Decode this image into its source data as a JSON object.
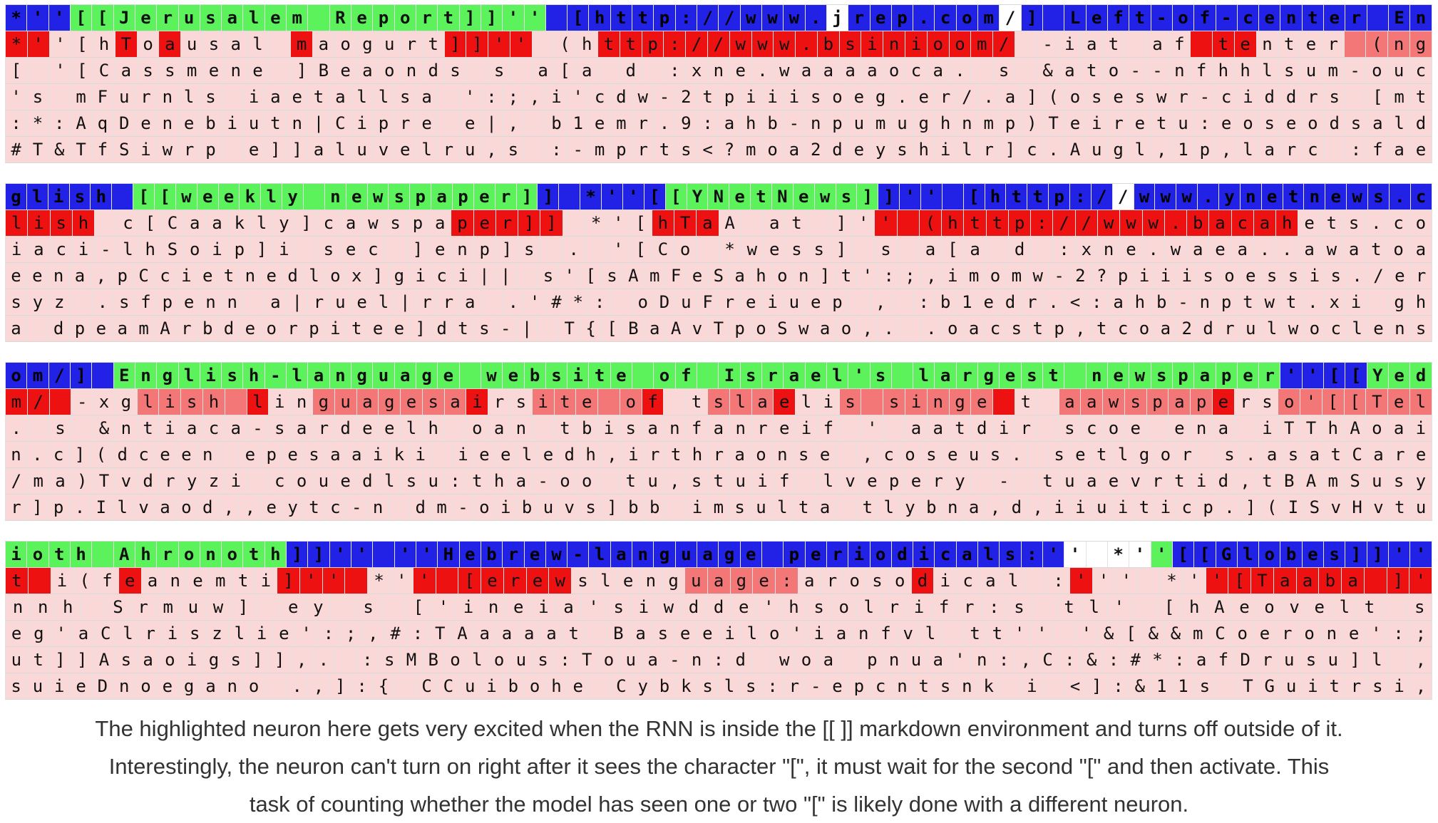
{
  "colors": {
    "top_in": "#5cf25c",
    "top_out": "#2222e6",
    "top_mid": "#b8b8ff",
    "top_none": "#ffffff",
    "pred_strong": "#ee1111",
    "pred_mid": "#f37777",
    "pred_light": "#fad8d8",
    "pred_none": "#ffffff"
  },
  "blocks": [
    {
      "top": "*''[[Jerusalem Report]]'' [http://www.jrep.com/] Left-of-center En",
      "top_level": "OOOGGGGGGGGGGGGGGGGGGGGGGOOOOOOOOOOOOOWOOOOOOOWOOOOOOOOOOOOOOOOOOOO",
      "preds": [
        "*''[hToausal maogurt]]'' (http://www.bsinioom/ -iat af tenter (ng",
        "[ '[Cassmene ]Beaonds s a[a d :xne.waaaaoca. s &ato--nfhhlsum-ouc",
        "'s mFurnls iaetallsa ':;,i'cdw-2tpiiisoeg.er/.a](oseswr-ciddrs [mt",
        ":*:AqDenebiutn|Cipre e|, b1emr.9:ahb-npumughnmp)Teiretu:eoseodsald",
        "#T&TfSiwrp e]]aluvelru,s :-mprts<?moa2deyshilr]c.Augl,1p,larc :fae"
      ],
      "levels": [
        "SSLLLSLSLLLLLSLLLLLLSSSSLLLSSSSSSSSSSSSSSSSSSSLLLLLLLLSSSLLLLMMMMMMMM",
        "LLLLLLLLLLLLLLLLLLLLLLLLLLLLLLLLLLLLLLLLLLLLLLLLLLLLLLLLLLLLLLLLLLLL",
        "LLLLLLLLLLLLLLLLLLLLLLLLLLLLLLLLLLLLLLLLLLLLLLLLLLLLLLLLLLLLLLLLLLLL",
        "LLLLLLLLLLLLLLLLLLLLLLLLLLLLLLLLLLLLLLLLLLLLLLLLLLLLLLLLLLLLLLLLLLLL",
        "LLLLLLLLLLLLLLLLLLLLLLLLLLLLLLLLLLLLLLLLLLLLLLLLLLLLLLLLLLLLLLLLLLLL"
      ]
    },
    {
      "top": "glish [[weekly newspaper]] *''[[YNetNews]]'' [http://www.ynetnews.c",
      "top_level": "OOOOOOGGGGGGGGGGGGGGGGGGGOOOOOOGGGGGGGGGGOOOOOOOOOOOWOOOOOOOOOOOOOOO",
      "preds": [
        "lish c[Caakly]cawspaper]] *'[hTaA at ]'' (http://www.bacahets.co",
        "iaci-lhSoip]i sec ]enp]s . '[Co *wess] s a[a d :xne.waea..awatoa",
        "eena,pCcietnedlox]gici|| s'[sAmFeSahon]t':;,imomw-2?piiisoessis./er",
        "syz .sfpenn a|ruel|rra .'#*: oDuFreiuep , :b1edr.<:ahb-nptwt.xi gh",
        "a dpeamArbdeorpitee]dts-| T{[BaAvTpoSwao,. .oacstp,tcoa2drulwoclens"
      ],
      "levels": [
        "SSSSLLLLLLLLLLLLLLLLSSSSSLLLLSSSLLLLLLLSSSSSSSSSSSSSSSSSSSLLLLLLLLSSSS",
        "LLLLLLLLLLLLLLLLLLLLLLLLLLLLLLLLLLLLLLLLLLLLLLLLLLLLLLLLLLLLLLLLLLLL",
        "LLLLLLLLLLLLLLLLLLLLLLLLLLLLLLLLLLLLLLLLLLLLLLLLLLLLLLLLLLLLLLLLLLLL",
        "LLLLLLLLLLLLLLLLLLLLLLLLLLLLLLLLLLLLLLLLLLLLLLLLLLLLLLLLLLLLLLLLLLLL",
        "LLLLLLLLLLLLLLLLLLLLLLLLLLLLLLLLLLLLLLLLLLLLLLLLLLLLLLLLLLLLLLLLLLLL"
      ]
    },
    {
      "top": "om/] English-language website of Israel's largest newspaper''[[Yed",
      "top_level": "OOOOOGGGGGGGGGGGGGGGGGGGGGGGGGGGGGGGGGGGGGGGGGGGGGGGGGGGGGGOOOOGGG",
      "preds": [
        "m/ -xglish linguagesairsite of tslaelis singe t aawspaperso'[[Tel",
        ". s &ntiaca-sardeelh oan tbisanfanreif ' aatdir scoe ena iTThAoai",
        "n.c](dceen epesaaiki ieeledh,irthraonse ,coseus. setlgor s.asatCare",
        "/ma)Tvdryzi couedlsu:tha-oo tu,stuif lvepery - tuaevrtid,tBAmSusy",
        "r]p.Ilvaod,,eytc-n dm-oibuvs]bb imsulta tlybna,d,iiuiticp.](ISvHvtu"
      ],
      "levels": [
        "SSSLLLMMMMMSLLMMMMMMMSLLMMMMMSLLMMMSLLMMMMMMMSLLMMMMMMMSLLMMMMMMMSSSLL",
        "LLLLLLLLLLLLLLLLLLLLLLLLLLLLLLLLLLLLLLLLLLLLLLLLLLLLLLLLLLLLLLLLLLLL",
        "LLLLLLLLLLLLLLLLLLLLLLLLLLLLLLLLLLLLLLLLLLLLLLLLLLLLLLLLLLLLLLLLLLLL",
        "LLLLLLLLLLLLLLLLLLLLLLLLLLLLLLLLLLLLLLLLLLLLLLLLLLLLLLLLLLLLLLLLLLLL",
        "LLLLLLLLLLLLLLLLLLLLLLLLLLLLLLLLLLLLLLLLLLLLLLLLLLLLLLLLLLLLLLLLLLLL"
      ]
    },
    {
      "top": "ioth Ahronoth]]'' ''Hebrew-language periodicals:'' *''[[Globes]]''",
      "top_level": "GGGGGGGGGGGGGOOOOOOOOOOOOOOOOOOOOOOOOOOOOOOOOOOOOWWWWGOOOOOOOOOOOOOO",
      "preds": [
        "t i(feanemti]'' *'' [erewslenguage:arosodical :''' *''[Taaba ]'",
        "nnh Srmuw] ey s ['ineia'siwdde'hsolrifr:s tl' [hAeovelt s",
        "eg'aClriszlie':;,#:TAaaaat Baseeilo'ianfvl tt'' '&[&&mCoerone':;",
        "ut]]Asaoigs]],. :sMBolous:Toua-n:d woa pnua'n:,C:&:#*:afDrusu]l ,",
        "suieDnoegano .,]:{ CCuibohe Cybksls:r-epcntsnk i <]:&11s TGuitrsi,"
      ],
      "levels": [
        "SSLLLSLLLLLLSSSSLLSSSSSSSLLLLLMMMMMLLLLLSLLLLLLSLLLLLSSSSSSSSSSSSSSSS",
        "LLLLLLLLLLLLLLLLLLLLLLLLLLLLLLLLLLLLLLLLLLLLLLLLLLLLLLLLLLLLLLLLLLLL",
        "LLLLLLLLLLLLLLLLLLLLLLLLLLLLLLLLLLLLLLLLLLLLLLLLLLLLLLLLLLLLLLLLLLLL",
        "LLLLLLLLLLLLLLLLLLLLLLLLLLLLLLLLLLLLLLLLLLLLLLLLLLLLLLLLLLLLLLLLLLLL",
        "LLLLLLLLLLLLLLLLLLLLLLLLLLLLLLLLLLLLLLLLLLLLLLLLLLLLLLLLLLLLLLLLLLLL"
      ]
    }
  ],
  "caption": [
    "The highlighted neuron here gets very excited when the RNN is inside the [[ ]] markdown environment and turns off outside of it.",
    "Interestingly, the neuron can't turn on right after it sees the character \"[\", it must wait for the second \"[\" and then activate. This",
    "task of counting whether the model has seen one or two \"[\" is likely done with a different neuron."
  ]
}
